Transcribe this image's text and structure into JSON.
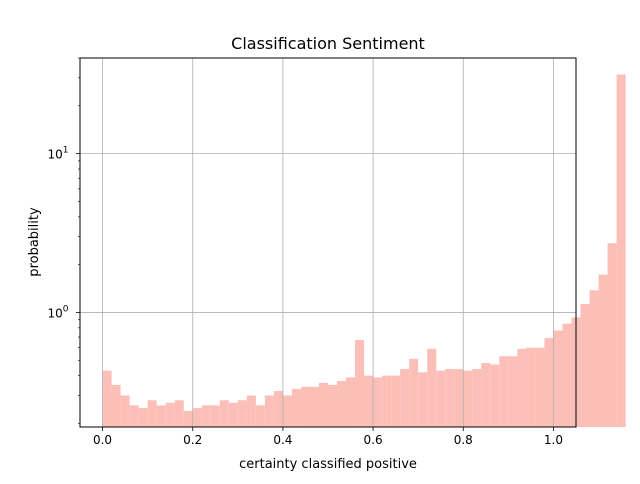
{
  "chart_data": {
    "type": "bar",
    "title": "Classification Sentiment",
    "xlabel": "certainty classified positive",
    "ylabel": "probability",
    "yscale": "log",
    "xlim": [
      -0.05,
      1.05
    ],
    "ylim": [
      0.19,
      40
    ],
    "grid": true,
    "bar_color": "#fbbfb8",
    "x_ticks": [
      {
        "value": 0.0,
        "label": "0.0"
      },
      {
        "value": 0.2,
        "label": "0.2"
      },
      {
        "value": 0.4,
        "label": "0.4"
      },
      {
        "value": 0.6,
        "label": "0.6"
      },
      {
        "value": 0.8,
        "label": "0.8"
      },
      {
        "value": 1.0,
        "label": "1.0"
      }
    ],
    "y_ticks": [
      {
        "value": 1,
        "base": "10",
        "exp": "0"
      },
      {
        "value": 10,
        "base": "10",
        "exp": "1"
      }
    ],
    "bins": {
      "start": 0.0,
      "width": 0.02
    },
    "values": [
      0.43,
      0.35,
      0.3,
      0.26,
      0.25,
      0.28,
      0.26,
      0.27,
      0.28,
      0.24,
      0.25,
      0.26,
      0.26,
      0.28,
      0.27,
      0.28,
      0.3,
      0.26,
      0.3,
      0.32,
      0.3,
      0.33,
      0.34,
      0.34,
      0.36,
      0.35,
      0.37,
      0.39,
      0.67,
      0.4,
      0.39,
      0.4,
      0.4,
      0.44,
      0.51,
      0.42,
      0.59,
      0.43,
      0.44,
      0.44,
      0.43,
      0.44,
      0.48,
      0.47,
      0.53,
      0.53,
      0.59,
      0.6,
      0.6,
      0.69,
      0.77,
      0.85,
      0.93,
      1.13,
      1.38,
      1.73,
      2.73,
      31.5
    ]
  }
}
